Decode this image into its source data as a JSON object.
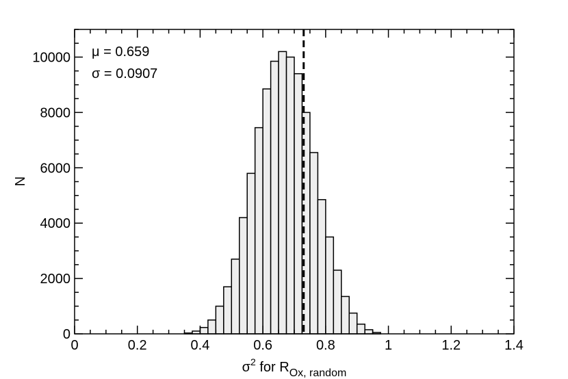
{
  "chart_data": {
    "type": "bar",
    "title": "",
    "xlabel": {
      "prefix": "σ",
      "sup": "2",
      "middle": " for R",
      "sub": "Ox, random"
    },
    "ylabel": "N",
    "xlim": [
      0,
      1.4
    ],
    "ylim": [
      0,
      11000
    ],
    "x_ticks": [
      0,
      0.2,
      0.4,
      0.6,
      0.8,
      1.0,
      1.2,
      1.4
    ],
    "x_tick_labels": [
      "0",
      "0.2",
      "0.4",
      "0.6",
      "0.8",
      "1",
      "1.2",
      "1.4"
    ],
    "y_ticks": [
      0,
      2000,
      4000,
      6000,
      8000,
      10000
    ],
    "y_tick_labels": [
      "0",
      "2000",
      "4000",
      "6000",
      "8000",
      "10000"
    ],
    "bin_width": 0.025,
    "bins": [
      {
        "x0": 0.35,
        "value": 30
      },
      {
        "x0": 0.375,
        "value": 100
      },
      {
        "x0": 0.4,
        "value": 230
      },
      {
        "x0": 0.425,
        "value": 500
      },
      {
        "x0": 0.45,
        "value": 1000
      },
      {
        "x0": 0.475,
        "value": 1700
      },
      {
        "x0": 0.5,
        "value": 2700
      },
      {
        "x0": 0.525,
        "value": 4200
      },
      {
        "x0": 0.55,
        "value": 5800
      },
      {
        "x0": 0.575,
        "value": 7450
      },
      {
        "x0": 0.6,
        "value": 8850
      },
      {
        "x0": 0.625,
        "value": 9850
      },
      {
        "x0": 0.65,
        "value": 10200
      },
      {
        "x0": 0.675,
        "value": 10000
      },
      {
        "x0": 0.7,
        "value": 9400
      },
      {
        "x0": 0.725,
        "value": 8000
      },
      {
        "x0": 0.75,
        "value": 6550
      },
      {
        "x0": 0.775,
        "value": 4850
      },
      {
        "x0": 0.8,
        "value": 3500
      },
      {
        "x0": 0.825,
        "value": 2300
      },
      {
        "x0": 0.85,
        "value": 1350
      },
      {
        "x0": 0.875,
        "value": 750
      },
      {
        "x0": 0.9,
        "value": 350
      },
      {
        "x0": 0.925,
        "value": 150
      },
      {
        "x0": 0.95,
        "value": 50
      }
    ],
    "reference_line_x": 0.73,
    "annotations": [
      "μ = 0.659",
      "σ = 0.0907"
    ],
    "grid": false,
    "bar_fill": "#eeeeee",
    "bar_stroke": "#000000"
  }
}
